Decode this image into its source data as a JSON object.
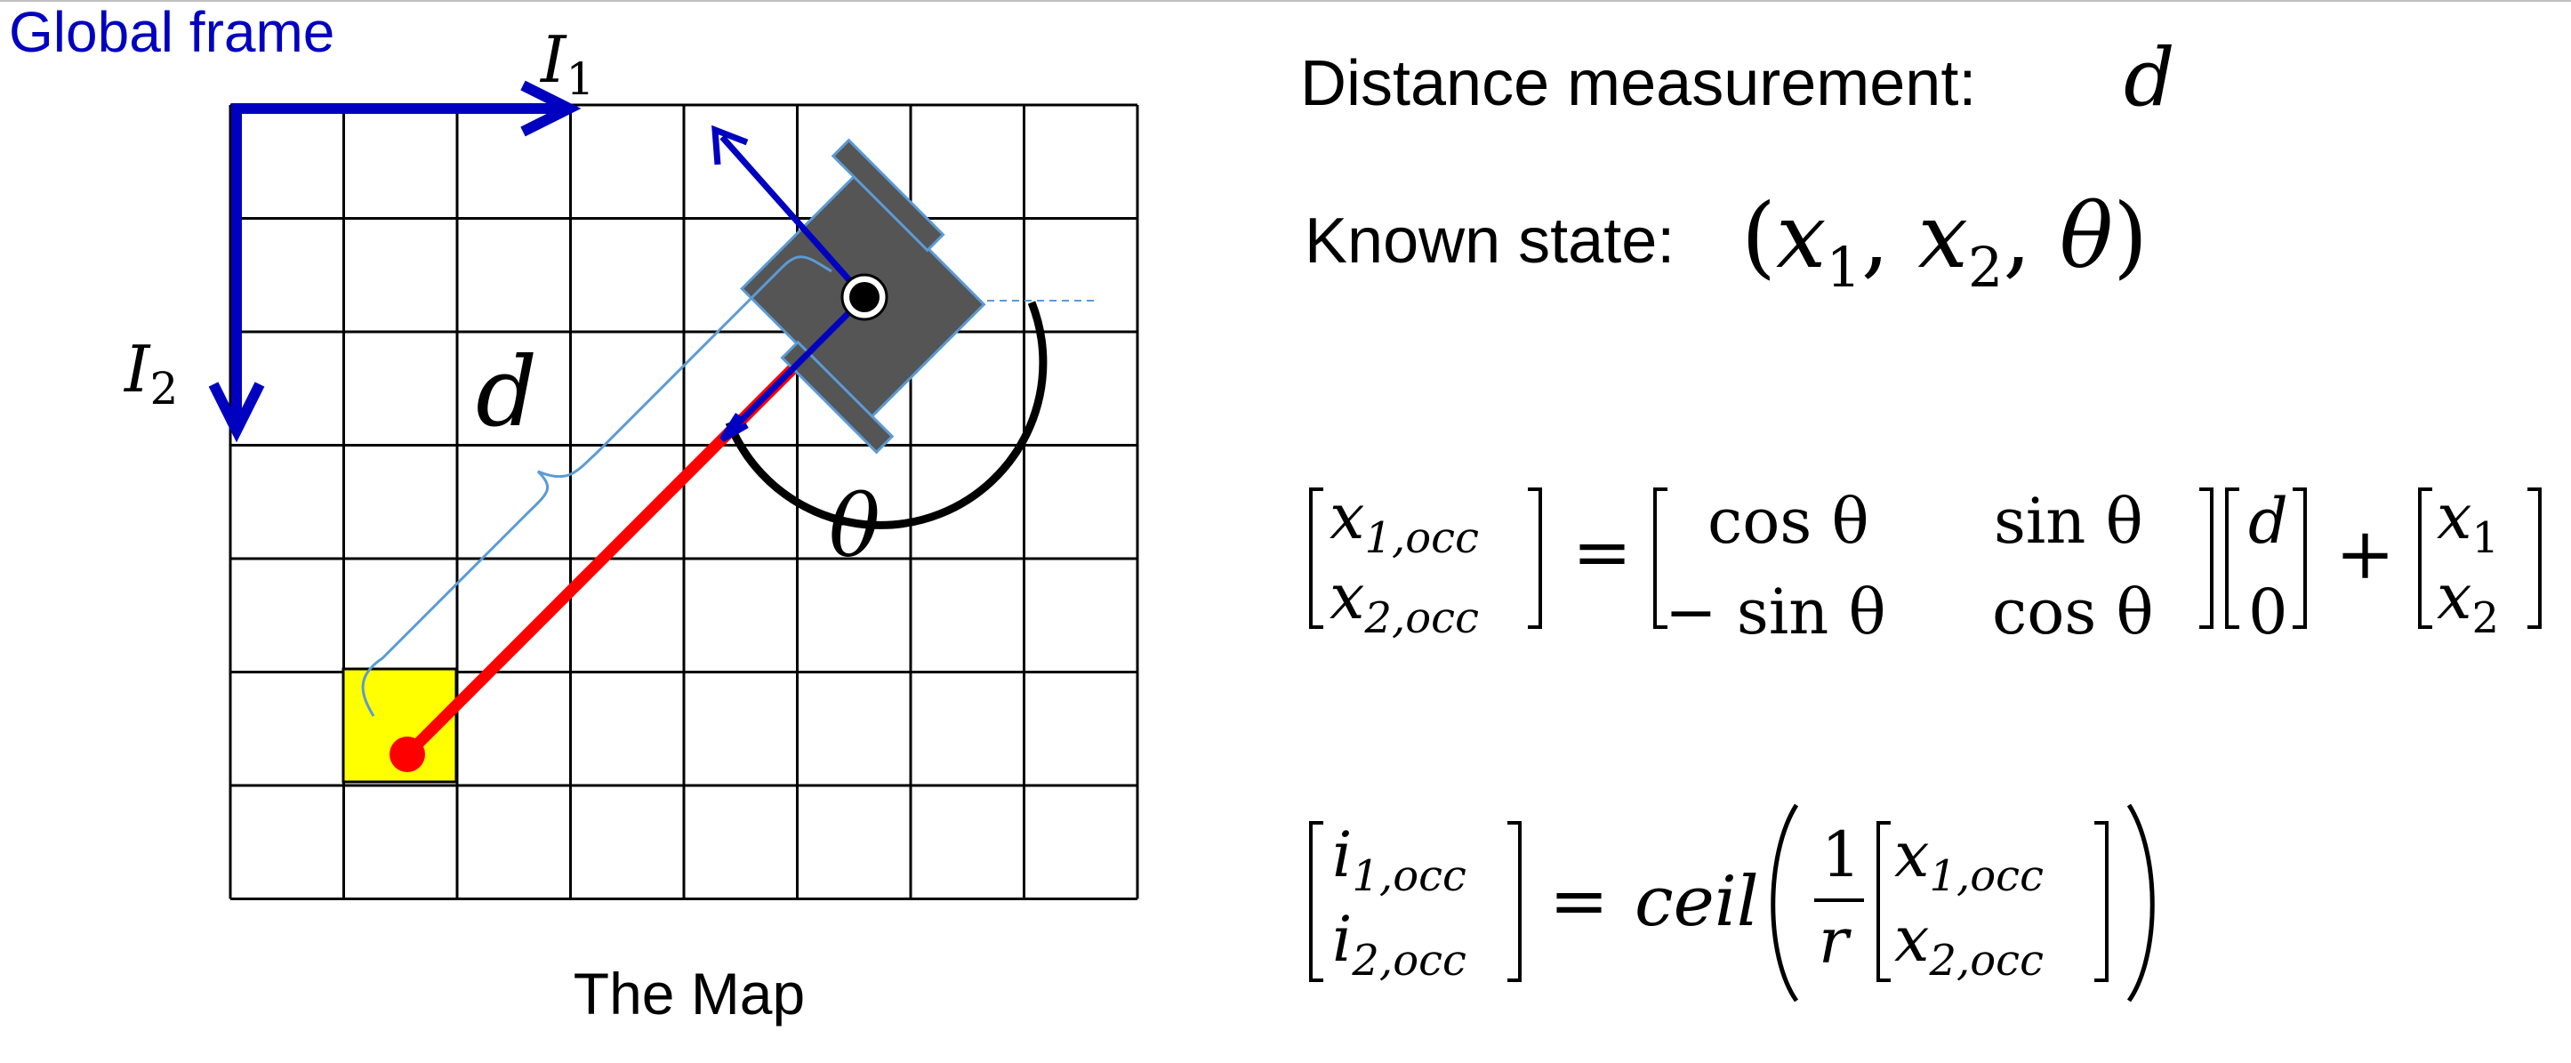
{
  "diagram": {
    "frame_label": "Global frame",
    "axis_1_label": "I",
    "axis_1_sub": "1",
    "axis_2_label": "I",
    "axis_2_sub": "2",
    "distance_symbol": "d",
    "angle_symbol": "θ",
    "map_caption": "The Map",
    "colors": {
      "frame_axes": "#0000c0",
      "grid_lines": "#000000",
      "robot_body": "#555555",
      "ray": "#ff0000",
      "occupied_cell": "#ffff00",
      "heading_arrow": "#0000c0",
      "brace": "#5b9bd5"
    }
  },
  "text": {
    "measurement_label": "Distance measurement:",
    "measurement_symbol": "d",
    "state_label": "Known state:",
    "state_open": "(",
    "state_x": "x",
    "state_1": "1",
    "state_comma_1": ", ",
    "state_x2": "x",
    "state_2": "2",
    "state_comma_2": ", ",
    "state_theta": "θ",
    "state_close": ")"
  },
  "equation_1": {
    "lhs_top_var": "x",
    "lhs_top_sub": "1,occ",
    "lhs_bottom_var": "x",
    "lhs_bottom_sub": "2,occ",
    "equals": "=",
    "m11": "cos θ",
    "m12": "sin θ",
    "m21": "− sin θ",
    "m22": "cos θ",
    "vec_top": "d",
    "vec_bottom": "0",
    "plus": "+",
    "off_top_var": "x",
    "off_top_sub": "1",
    "off_bottom_var": "x",
    "off_bottom_sub": "2"
  },
  "equation_2": {
    "lhs_top_var": "i",
    "lhs_top_sub": "1,occ",
    "lhs_bottom_var": "i",
    "lhs_bottom_sub": "2,occ",
    "equals": "=",
    "func": "ceil",
    "frac_num": "1",
    "frac_den": "r",
    "inner_top_var": "x",
    "inner_top_sub": "1,occ",
    "inner_bottom_var": "x",
    "inner_bottom_sub": "2,occ"
  }
}
